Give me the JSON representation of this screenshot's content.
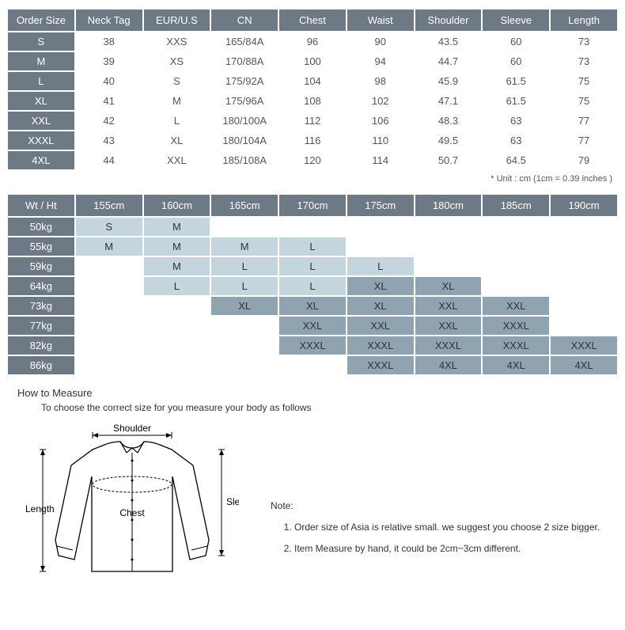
{
  "sizeTable": {
    "headers": [
      "Order Size",
      "Neck Tag",
      "EUR/U.S",
      "CN",
      "Chest",
      "Waist",
      "Shoulder",
      "Sleeve",
      "Length"
    ],
    "rows": [
      [
        "S",
        "38",
        "XXS",
        "165/84A",
        "96",
        "90",
        "43.5",
        "60",
        "73"
      ],
      [
        "M",
        "39",
        "XS",
        "170/88A",
        "100",
        "94",
        "44.7",
        "60",
        "73"
      ],
      [
        "L",
        "40",
        "S",
        "175/92A",
        "104",
        "98",
        "45.9",
        "61.5",
        "75"
      ],
      [
        "XL",
        "41",
        "M",
        "175/96A",
        "108",
        "102",
        "47.1",
        "61.5",
        "75"
      ],
      [
        "XXL",
        "42",
        "L",
        "180/100A",
        "112",
        "106",
        "48.3",
        "63",
        "77"
      ],
      [
        "XXXL",
        "43",
        "XL",
        "180/104A",
        "116",
        "110",
        "49.5",
        "63",
        "77"
      ],
      [
        "4XL",
        "44",
        "XXL",
        "185/108A",
        "120",
        "114",
        "50.7",
        "64.5",
        "79"
      ]
    ],
    "unitNote": "* Unit : cm (1cm = 0.39 inches )"
  },
  "recTable": {
    "headers": [
      "Wt / Ht",
      "155cm",
      "160cm",
      "165cm",
      "170cm",
      "175cm",
      "180cm",
      "185cm",
      "190cm"
    ],
    "rowLabels": [
      "50kg",
      "55kg",
      "59kg",
      "64kg",
      "73kg",
      "77kg",
      "82kg",
      "86kg"
    ],
    "cells": [
      [
        {
          "v": "S",
          "c": "lite"
        },
        {
          "v": "M",
          "c": "lite"
        },
        {
          "v": "",
          "c": "empty"
        },
        {
          "v": "",
          "c": "empty"
        },
        {
          "v": "",
          "c": "empty"
        },
        {
          "v": "",
          "c": "empty"
        },
        {
          "v": "",
          "c": "empty"
        },
        {
          "v": "",
          "c": "empty"
        }
      ],
      [
        {
          "v": "M",
          "c": "lite"
        },
        {
          "v": "M",
          "c": "lite"
        },
        {
          "v": "M",
          "c": "lite"
        },
        {
          "v": "L",
          "c": "lite"
        },
        {
          "v": "",
          "c": "empty"
        },
        {
          "v": "",
          "c": "empty"
        },
        {
          "v": "",
          "c": "empty"
        },
        {
          "v": "",
          "c": "empty"
        }
      ],
      [
        {
          "v": "",
          "c": "empty"
        },
        {
          "v": "M",
          "c": "lite"
        },
        {
          "v": "L",
          "c": "lite"
        },
        {
          "v": "L",
          "c": "lite"
        },
        {
          "v": "L",
          "c": "lite"
        },
        {
          "v": "",
          "c": "empty"
        },
        {
          "v": "",
          "c": "empty"
        },
        {
          "v": "",
          "c": "empty"
        }
      ],
      [
        {
          "v": "",
          "c": "empty"
        },
        {
          "v": "L",
          "c": "lite"
        },
        {
          "v": "L",
          "c": "lite"
        },
        {
          "v": "L",
          "c": "lite"
        },
        {
          "v": "XL",
          "c": "dark"
        },
        {
          "v": "XL",
          "c": "dark"
        },
        {
          "v": "",
          "c": "empty"
        },
        {
          "v": "",
          "c": "empty"
        }
      ],
      [
        {
          "v": "",
          "c": "empty"
        },
        {
          "v": "",
          "c": "empty"
        },
        {
          "v": "XL",
          "c": "dark"
        },
        {
          "v": "XL",
          "c": "dark"
        },
        {
          "v": "XL",
          "c": "dark"
        },
        {
          "v": "XXL",
          "c": "dark"
        },
        {
          "v": "XXL",
          "c": "dark"
        },
        {
          "v": "",
          "c": "empty"
        }
      ],
      [
        {
          "v": "",
          "c": "empty"
        },
        {
          "v": "",
          "c": "empty"
        },
        {
          "v": "",
          "c": "empty"
        },
        {
          "v": "XXL",
          "c": "dark"
        },
        {
          "v": "XXL",
          "c": "dark"
        },
        {
          "v": "XXL",
          "c": "dark"
        },
        {
          "v": "XXXL",
          "c": "dark"
        },
        {
          "v": "",
          "c": "empty"
        }
      ],
      [
        {
          "v": "",
          "c": "empty"
        },
        {
          "v": "",
          "c": "empty"
        },
        {
          "v": "",
          "c": "empty"
        },
        {
          "v": "XXXL",
          "c": "dark"
        },
        {
          "v": "XXXL",
          "c": "dark"
        },
        {
          "v": "XXXL",
          "c": "dark"
        },
        {
          "v": "XXXL",
          "c": "dark"
        },
        {
          "v": "XXXL",
          "c": "dark"
        }
      ],
      [
        {
          "v": "",
          "c": "empty"
        },
        {
          "v": "",
          "c": "empty"
        },
        {
          "v": "",
          "c": "empty"
        },
        {
          "v": "",
          "c": "empty"
        },
        {
          "v": "XXXL",
          "c": "dark"
        },
        {
          "v": "4XL",
          "c": "dark"
        },
        {
          "v": "4XL",
          "c": "dark"
        },
        {
          "v": "4XL",
          "c": "dark"
        }
      ]
    ]
  },
  "howTo": {
    "title": "How to Measure",
    "subtitle": "To choose the correct size for you measure your body as follows",
    "labels": {
      "shoulder": "Shoulder",
      "length": "Length",
      "chest": "Chest",
      "sleeve": "Sleeve"
    }
  },
  "notes": {
    "title": "Note:",
    "items": [
      "Order size of Asia is relative small. we suggest you choose 2 size bigger.",
      "Item Measure by hand, it could be 2cm~3cm different."
    ]
  },
  "style": {
    "headerBg": "#6d7a86",
    "headerFg": "#ffffff",
    "liteBg": "#c5d5de",
    "darkBg": "#8fa4b0",
    "textColor": "#555",
    "fontSize": 13
  }
}
